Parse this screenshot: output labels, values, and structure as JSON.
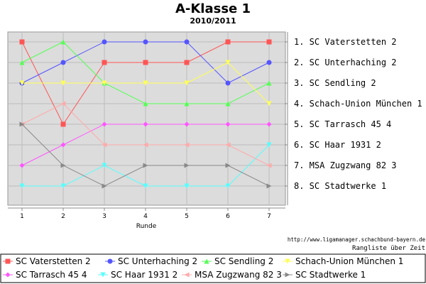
{
  "chart_data": {
    "type": "line",
    "title": "A-Klasse 1",
    "subtitle": "2010/2011",
    "xlabel": "Runde",
    "x": [
      1,
      2,
      3,
      4,
      5,
      6,
      7
    ],
    "y_reversed": true,
    "ylim": [
      1,
      8
    ],
    "grid": true,
    "legend_placement": "bottom",
    "final_ranking": [
      "1. SC Vaterstetten 2",
      "2. SC Unterhaching 2",
      "3. SC Sendling 2",
      "4. Schach-Union München 1",
      "5. SC Tarrasch 45 4",
      "6. SC Haar 1931 2",
      "7. MSA Zugzwang 82 3",
      "8. SC Stadtwerke 1"
    ],
    "series": [
      {
        "name": "SC Vaterstetten 2",
        "color": "#ff5555",
        "marker": "square",
        "values": [
          1,
          5,
          2,
          2,
          2,
          1,
          1
        ]
      },
      {
        "name": "SC Unterhaching 2",
        "color": "#5555ff",
        "marker": "circle",
        "values": [
          3,
          2,
          1,
          1,
          1,
          3,
          2
        ]
      },
      {
        "name": "SC Sendling 2",
        "color": "#55ff55",
        "marker": "triangle-up",
        "values": [
          2,
          1,
          3,
          4,
          4,
          4,
          3
        ]
      },
      {
        "name": "Schach-Union München 1",
        "color": "#ffff55",
        "marker": "triangle-down",
        "values": [
          3,
          3,
          3,
          3,
          3,
          2,
          4
        ]
      },
      {
        "name": "SC Tarrasch 45 4",
        "color": "#ff55ff",
        "marker": "diamond",
        "values": [
          7,
          6,
          5,
          5,
          5,
          5,
          5
        ]
      },
      {
        "name": "SC Haar 1931 2",
        "color": "#55ffff",
        "marker": "triangle-down",
        "values": [
          8,
          8,
          7,
          8,
          8,
          8,
          6
        ]
      },
      {
        "name": "MSA Zugzwang 82 3",
        "color": "#ffaaaa",
        "marker": "triangle-left",
        "values": [
          5,
          4,
          6,
          6,
          6,
          6,
          7
        ]
      },
      {
        "name": "SC Stadtwerke 1",
        "color": "#888888",
        "marker": "triangle-right",
        "values": [
          5,
          7,
          8,
          7,
          7,
          7,
          8
        ]
      }
    ]
  },
  "source_url": "http://www.ligamanager.schachbund-bayern.de",
  "source_note": "Rangliste über Zeit"
}
